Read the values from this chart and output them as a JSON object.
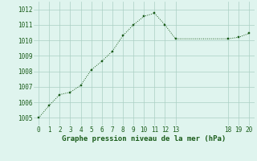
{
  "x": [
    0,
    1,
    2,
    3,
    4,
    5,
    6,
    7,
    8,
    9,
    10,
    11,
    12,
    13,
    18,
    19,
    20
  ],
  "y": [
    1005.0,
    1005.8,
    1006.5,
    1006.65,
    1007.1,
    1008.1,
    1008.65,
    1009.3,
    1010.3,
    1011.0,
    1011.55,
    1011.75,
    1011.0,
    1010.1,
    1010.1,
    1010.2,
    1010.45
  ],
  "line_color": "#1a5c1a",
  "marker_color": "#1a5c1a",
  "bg_color": "#dff4ee",
  "grid_color": "#aacfc4",
  "xlabel": "Graphe pression niveau de la mer (hPa)",
  "ylim": [
    1004.5,
    1012.5
  ],
  "yticks": [
    1005,
    1006,
    1007,
    1008,
    1009,
    1010,
    1011,
    1012
  ],
  "xticks": [
    0,
    1,
    2,
    3,
    4,
    5,
    6,
    7,
    8,
    9,
    10,
    11,
    12,
    13,
    18,
    19,
    20
  ],
  "xlabel_fontsize": 6.5,
  "tick_fontsize": 5.5,
  "figsize": [
    3.2,
    2.0
  ],
  "dpi": 100
}
